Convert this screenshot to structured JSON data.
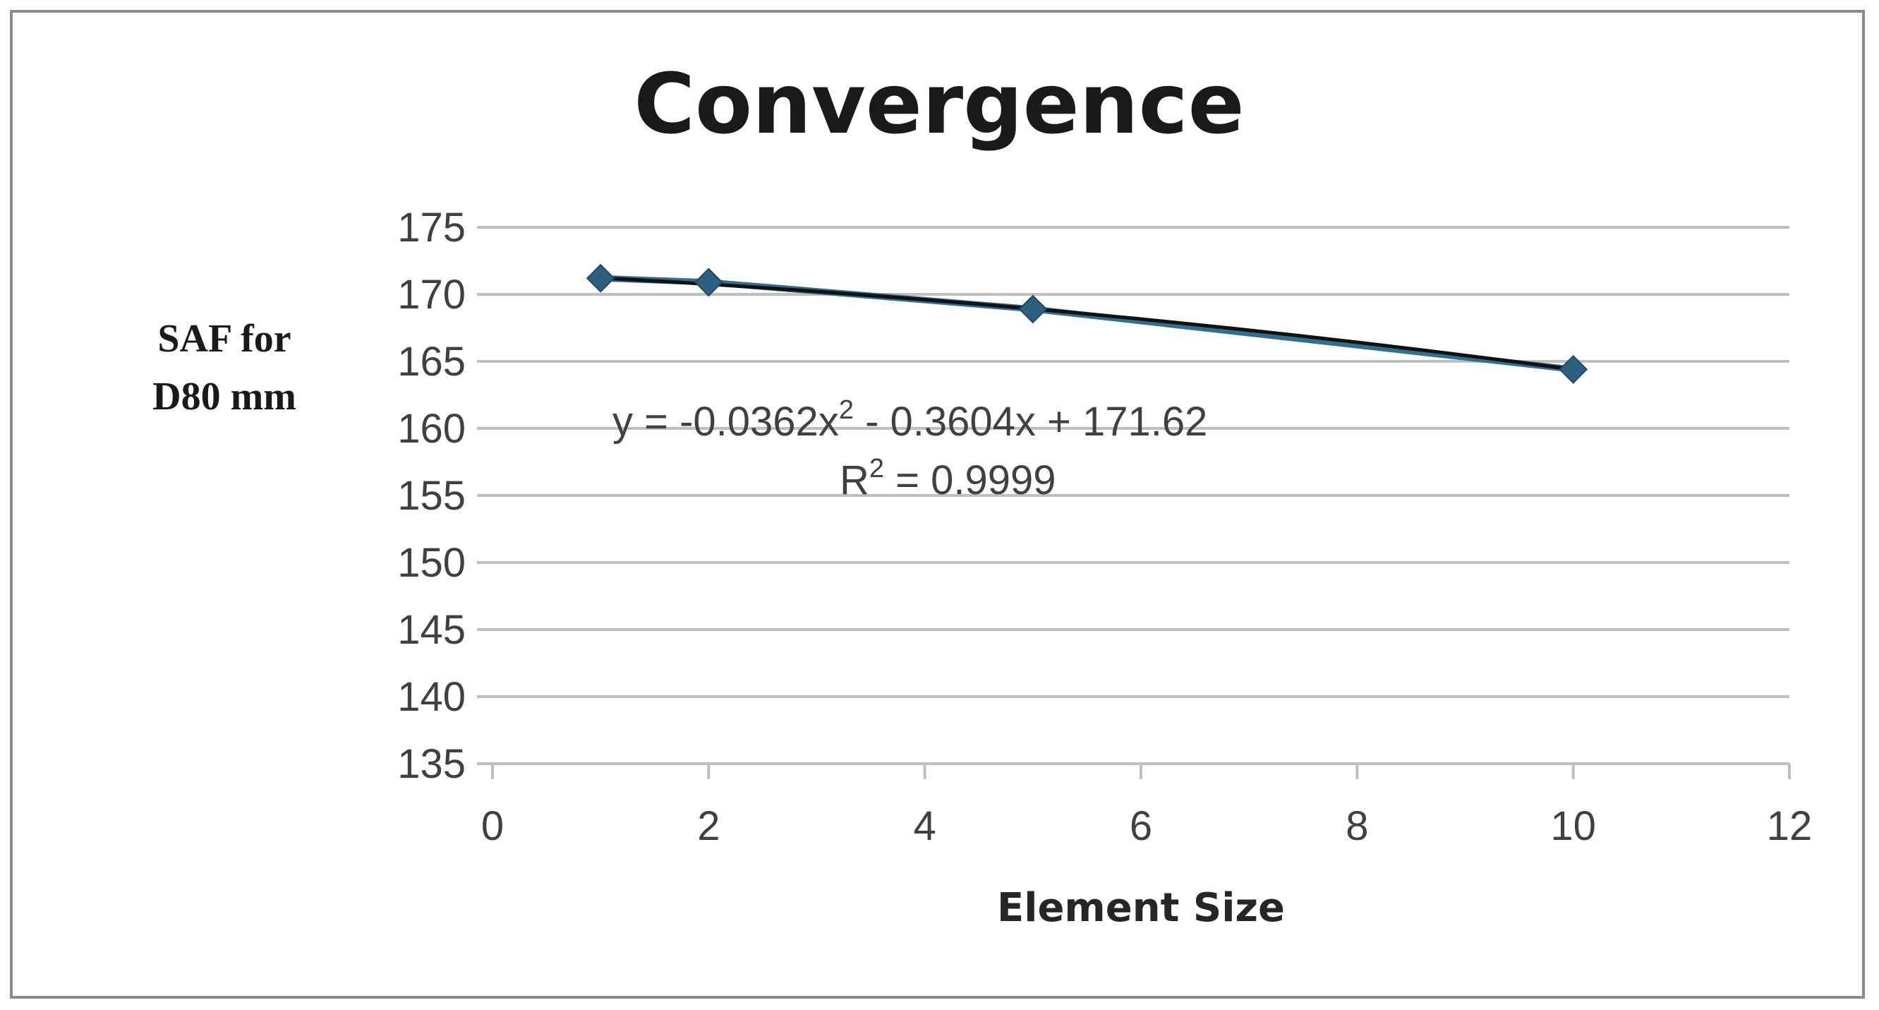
{
  "chart_data": {
    "type": "scatter",
    "title": "Convergence",
    "xlabel": "Element Size",
    "ylabel_lines": [
      "SAF for",
      "D80 mm"
    ],
    "xlim": [
      0,
      12
    ],
    "ylim": [
      135,
      175
    ],
    "x_ticks": [
      0,
      2,
      4,
      6,
      8,
      10,
      12
    ],
    "y_ticks": [
      135,
      140,
      145,
      150,
      155,
      160,
      165,
      170,
      175
    ],
    "grid": "horizontal",
    "series": [
      {
        "x": [
          1,
          2,
          5,
          10
        ],
        "y": [
          171.2,
          170.9,
          168.9,
          164.4
        ],
        "marker": "diamond",
        "color": "#2f5f7f",
        "line_color": "#2f6f8f"
      }
    ],
    "trendline": {
      "type": "polynomial",
      "order": 2,
      "a": -0.0362,
      "b": -0.3604,
      "c": 171.62,
      "x_range": [
        1,
        10
      ],
      "color": "#111111",
      "equation_text": "y = -0.0362x",
      "equation_sup": "2",
      "equation_rest": " - 0.3604x + 171.62",
      "r2_prefix": "R",
      "r2_sup": "2",
      "r2_rest": " = 0.9999"
    }
  }
}
